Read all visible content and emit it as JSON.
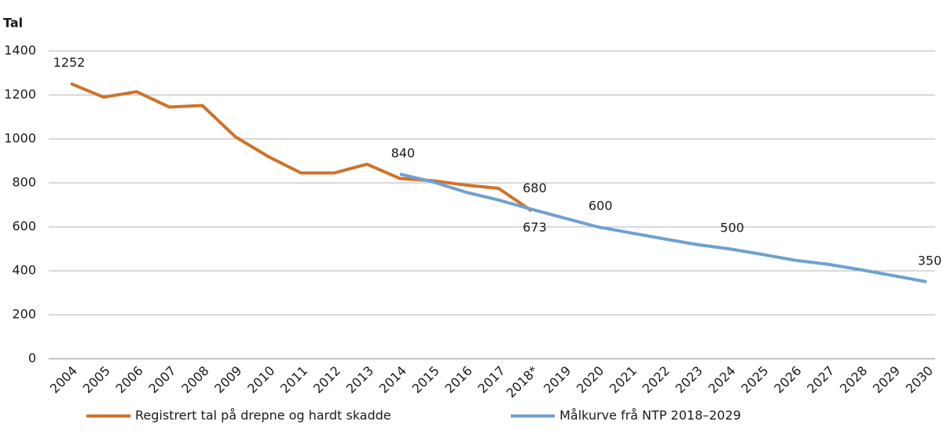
{
  "chart_data": {
    "type": "line",
    "ylabel": "Tal",
    "categories": [
      "2004",
      "2005",
      "2006",
      "2007",
      "2008",
      "2009",
      "2010",
      "2011",
      "2012",
      "2013",
      "2014",
      "2015",
      "2016",
      "2017",
      "2018*",
      "2019",
      "2020",
      "2021",
      "2022",
      "2023",
      "2024",
      "2025",
      "2026",
      "2027",
      "2028",
      "2029",
      "2030"
    ],
    "series": [
      {
        "name": "Registrert tal på drepne og hardt skadde",
        "color": "#d0722a",
        "values": [
          1252,
          1190,
          1215,
          1145,
          1152,
          1010,
          920,
          845,
          845,
          885,
          820,
          810,
          790,
          775,
          673,
          null,
          null,
          null,
          null,
          null,
          null,
          null,
          null,
          null,
          null,
          null,
          null
        ],
        "value_labels": [
          "1252",
          null,
          null,
          null,
          null,
          null,
          null,
          null,
          null,
          null,
          null,
          null,
          null,
          null,
          "673",
          null,
          null,
          null,
          null,
          null,
          null,
          null,
          null,
          null,
          null,
          null,
          null
        ]
      },
      {
        "name": "Målkurve frå NTP 2018–2029",
        "color": "#6fa0d2",
        "values": [
          null,
          null,
          null,
          null,
          null,
          null,
          null,
          null,
          null,
          null,
          840,
          805,
          758,
          722,
          680,
          640,
          600,
          573,
          546,
          520,
          500,
          475,
          448,
          430,
          405,
          378,
          350
        ],
        "value_labels": [
          null,
          null,
          null,
          null,
          null,
          null,
          null,
          null,
          null,
          null,
          "840",
          null,
          null,
          null,
          "680",
          null,
          "600",
          null,
          null,
          null,
          "500",
          null,
          null,
          null,
          null,
          null,
          "350"
        ]
      }
    ],
    "ylim": [
      0,
      1400
    ],
    "yticks": [
      0,
      200,
      400,
      600,
      800,
      1000,
      1200,
      1400
    ],
    "grid": true,
    "legend": "bottom"
  }
}
